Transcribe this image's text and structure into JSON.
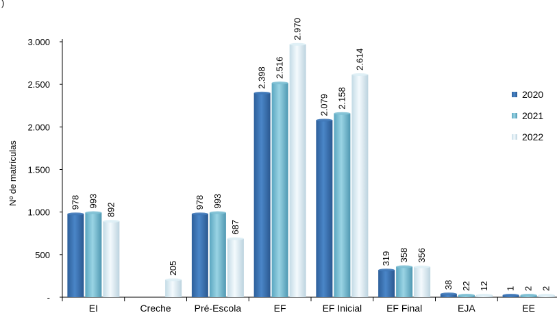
{
  "chart_data": {
    "type": "bar",
    "title": "",
    "xlabel": "",
    "ylabel": "Nº de matrículas",
    "ylim": [
      0,
      3000
    ],
    "yticks": [
      0,
      500,
      1000,
      1500,
      2000,
      2500,
      3000
    ],
    "ytick_labels": [
      "-",
      "500",
      "1.000",
      "1.500",
      "2.000",
      "2.500",
      "3.000"
    ],
    "categories": [
      "EI",
      "Creche",
      "Pré-Escola",
      "EF",
      "EF Inicial",
      "EF Final",
      "EJA",
      "EE"
    ],
    "series": [
      {
        "name": "2020",
        "values": [
          978,
          0,
          978,
          2398,
          2079,
          319,
          38,
          1
        ],
        "labels": [
          "978",
          "",
          "978",
          "2.398",
          "2.079",
          "319",
          "38",
          "1"
        ],
        "color": "#3f78b8"
      },
      {
        "name": "2021",
        "values": [
          993,
          0,
          993,
          2516,
          2158,
          358,
          22,
          2
        ],
        "labels": [
          "993",
          "",
          "993",
          "2.516",
          "2.158",
          "358",
          "22",
          "2"
        ],
        "color": "#7ec0d4"
      },
      {
        "name": "2022",
        "values": [
          892,
          205,
          687,
          2970,
          2614,
          356,
          12,
          2
        ],
        "labels": [
          "892",
          "205",
          "687",
          "2.970",
          "2.614",
          "356",
          "12",
          "2"
        ],
        "color": "#ddeef5"
      }
    ],
    "legend_position": "right",
    "grid": false
  },
  "corner_text": ")"
}
